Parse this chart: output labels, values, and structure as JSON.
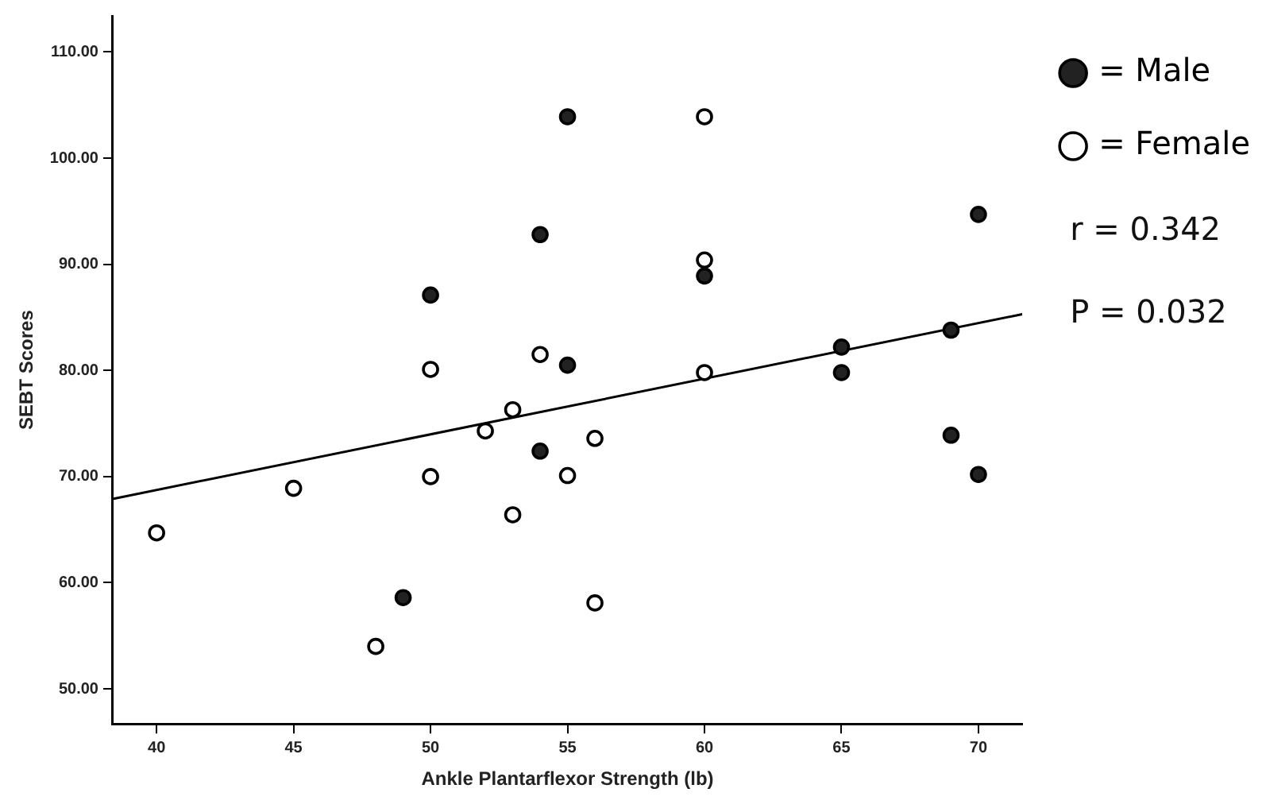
{
  "chart_data": {
    "type": "scatter",
    "xlabel": "Ankle Plantarflexor Strength (lb)",
    "ylabel": "SEBT Scores",
    "xlim": [
      38.4,
      71.6
    ],
    "ylim": [
      46.7,
      113.4
    ],
    "xticks": [
      40,
      45,
      50,
      55,
      60,
      65,
      70
    ],
    "yticks": [
      {
        "value": 50,
        "label": "50.00"
      },
      {
        "value": 60,
        "label": "60.00"
      },
      {
        "value": 70,
        "label": "70.00"
      },
      {
        "value": 80,
        "label": "80.00"
      },
      {
        "value": 90,
        "label": "90.00"
      },
      {
        "value": 100,
        "label": "100.00"
      },
      {
        "value": 110,
        "label": "110.00"
      }
    ],
    "grid": false,
    "legend": "right",
    "marker": "circle",
    "series": [
      {
        "name": "= Male",
        "color": "#222222",
        "x": [
          49,
          50,
          54,
          54,
          55,
          55,
          60,
          65,
          65,
          69,
          69,
          70,
          70
        ],
        "values": [
          58.6,
          87.1,
          92.8,
          72.4,
          103.9,
          80.5,
          88.9,
          82.2,
          79.8,
          83.8,
          73.9,
          94.7,
          70.2
        ]
      },
      {
        "name": "= Female",
        "color": "#ffffff",
        "x": [
          40,
          45,
          48,
          50,
          50,
          52,
          53,
          53,
          54,
          55,
          56,
          56,
          60,
          60,
          60
        ],
        "values": [
          64.7,
          68.9,
          54.0,
          80.1,
          70.0,
          74.3,
          76.3,
          66.4,
          81.5,
          70.1,
          73.6,
          58.1,
          103.9,
          90.4,
          79.8
        ]
      },
      {
        "type": "line",
        "color": "#000000",
        "marker": "none",
        "x": [
          38.4,
          71.6
        ],
        "values": [
          67.9,
          85.3
        ]
      }
    ],
    "annotations": [
      "r = 0.342",
      "P = 0.032"
    ]
  }
}
